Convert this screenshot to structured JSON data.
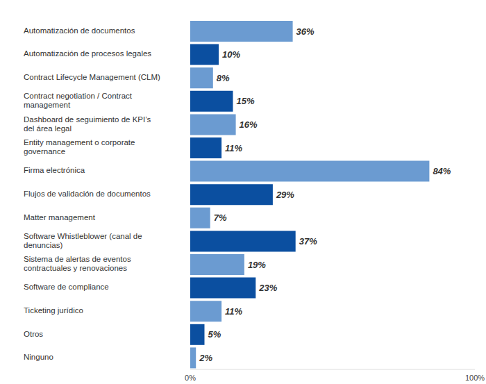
{
  "chart_data": {
    "type": "bar",
    "orientation": "horizontal",
    "categories": [
      "Automatización de documentos",
      "Automatización de procesos legales",
      "Contract Lifecycle Management (CLM)",
      "Contract negotiation / Contract management",
      "Dashboard de seguimiento de KPI’s del área legal",
      "Entity management o corporate governance",
      "Firma electrónica",
      "Flujos de validación de documentos",
      "Matter management",
      "Software Whistleblower (canal de denuncias)",
      "Sistema de alertas de eventos contractuales y renovaciones",
      "Software de compliance",
      "Ticketing jurídico",
      "Otros",
      "Ninguno"
    ],
    "values": [
      36,
      10,
      8,
      15,
      16,
      11,
      84,
      29,
      7,
      37,
      19,
      23,
      11,
      5,
      2
    ],
    "value_labels": [
      "36%",
      "10%",
      "8%",
      "15%",
      "16%",
      "11%",
      "84%",
      "29%",
      "7%",
      "37%",
      "19%",
      "23%",
      "11%",
      "5%",
      "2%"
    ],
    "colors": [
      "#6b9bd1",
      "#0b4fa0",
      "#6b9bd1",
      "#0b4fa0",
      "#6b9bd1",
      "#0b4fa0",
      "#6b9bd1",
      "#0b4fa0",
      "#6b9bd1",
      "#0b4fa0",
      "#6b9bd1",
      "#0b4fa0",
      "#6b9bd1",
      "#0b4fa0",
      "#6b9bd1"
    ],
    "xlim": [
      0,
      100
    ],
    "xticks": [
      {
        "value": 0,
        "label": "0%"
      },
      {
        "value": 100,
        "label": "100%"
      }
    ],
    "data_labels": true
  }
}
